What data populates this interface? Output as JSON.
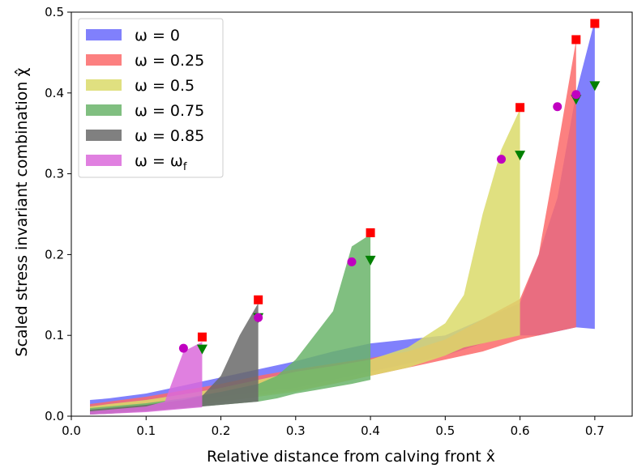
{
  "chart_data": {
    "type": "area",
    "xlabel": "Relative distance from calving front x̂",
    "ylabel": "Scaled stress invariant combination χ̂",
    "xlim": [
      0.0,
      0.75
    ],
    "ylim": [
      0.0,
      0.5
    ],
    "x_ticks": [
      "0.0",
      "0.1",
      "0.2",
      "0.3",
      "0.4",
      "0.5",
      "0.6",
      "0.7"
    ],
    "y_ticks": [
      "0.0",
      "0.1",
      "0.2",
      "0.3",
      "0.4",
      "0.5"
    ],
    "grid": false,
    "legend_position": "top-left",
    "series": [
      {
        "name": "ω = 0",
        "legend_label": "ω = 0",
        "color": "#6a6afc",
        "x": [
          0.025,
          0.05,
          0.1,
          0.15,
          0.2,
          0.25,
          0.3,
          0.35,
          0.4,
          0.45,
          0.5,
          0.55,
          0.6,
          0.625,
          0.65,
          0.675,
          0.7
        ],
        "upper": [
          0.02,
          0.022,
          0.028,
          0.038,
          0.048,
          0.058,
          0.068,
          0.08,
          0.09,
          0.095,
          0.1,
          0.12,
          0.14,
          0.2,
          0.27,
          0.4,
          0.49
        ],
        "lower": [
          0.005,
          0.008,
          0.012,
          0.018,
          0.024,
          0.03,
          0.035,
          0.045,
          0.055,
          0.065,
          0.075,
          0.09,
          0.1,
          0.1,
          0.105,
          0.11,
          0.108
        ]
      },
      {
        "name": "ω = 0.25",
        "legend_label": "ω = 0.25",
        "color": "#fc6a6a",
        "x": [
          0.025,
          0.05,
          0.1,
          0.15,
          0.2,
          0.25,
          0.3,
          0.35,
          0.4,
          0.45,
          0.5,
          0.55,
          0.6,
          0.625,
          0.65,
          0.675
        ],
        "upper": [
          0.015,
          0.018,
          0.024,
          0.032,
          0.04,
          0.05,
          0.058,
          0.065,
          0.072,
          0.08,
          0.095,
          0.12,
          0.145,
          0.2,
          0.33,
          0.465
        ],
        "lower": [
          0.003,
          0.006,
          0.01,
          0.015,
          0.02,
          0.026,
          0.032,
          0.04,
          0.05,
          0.06,
          0.07,
          0.08,
          0.095,
          0.1,
          0.105,
          0.11
        ]
      },
      {
        "name": "ω = 0.5",
        "legend_label": "ω = 0.5",
        "color": "#dada6a",
        "x": [
          0.025,
          0.05,
          0.1,
          0.15,
          0.2,
          0.25,
          0.3,
          0.35,
          0.4,
          0.45,
          0.5,
          0.525,
          0.55,
          0.575,
          0.6
        ],
        "upper": [
          0.012,
          0.015,
          0.02,
          0.027,
          0.035,
          0.045,
          0.055,
          0.062,
          0.07,
          0.085,
          0.115,
          0.15,
          0.25,
          0.33,
          0.38
        ],
        "lower": [
          0.003,
          0.005,
          0.008,
          0.012,
          0.018,
          0.024,
          0.03,
          0.04,
          0.05,
          0.06,
          0.075,
          0.085,
          0.09,
          0.095,
          0.1
        ]
      },
      {
        "name": "ω = 0.75",
        "legend_label": "ω = 0.75",
        "color": "#6ab46a",
        "x": [
          0.025,
          0.05,
          0.1,
          0.15,
          0.2,
          0.25,
          0.275,
          0.3,
          0.325,
          0.35,
          0.375,
          0.4
        ],
        "upper": [
          0.01,
          0.012,
          0.016,
          0.022,
          0.03,
          0.04,
          0.05,
          0.07,
          0.1,
          0.13,
          0.21,
          0.225
        ],
        "lower": [
          0.002,
          0.004,
          0.007,
          0.01,
          0.014,
          0.018,
          0.022,
          0.028,
          0.032,
          0.036,
          0.04,
          0.045
        ]
      },
      {
        "name": "ω = 0.85",
        "legend_label": "ω = 0.85",
        "color": "#6a6a6a",
        "x": [
          0.025,
          0.05,
          0.1,
          0.15,
          0.175,
          0.2,
          0.225,
          0.25
        ],
        "upper": [
          0.008,
          0.01,
          0.014,
          0.02,
          0.025,
          0.05,
          0.1,
          0.14
        ],
        "lower": [
          0.002,
          0.003,
          0.006,
          0.01,
          0.012,
          0.014,
          0.016,
          0.018
        ]
      },
      {
        "name": "ω = ω_f",
        "legend_label": "ω = ω",
        "legend_sub": "f",
        "color": "#da6ada",
        "x": [
          0.025,
          0.05,
          0.1,
          0.125,
          0.15,
          0.175
        ],
        "upper": [
          0.006,
          0.008,
          0.012,
          0.018,
          0.08,
          0.092
        ],
        "lower": [
          0.002,
          0.003,
          0.005,
          0.007,
          0.009,
          0.011
        ]
      }
    ],
    "markers": [
      {
        "shape": "square",
        "color": "#ff0000",
        "points": [
          [
            0.175,
            0.098
          ],
          [
            0.25,
            0.144
          ],
          [
            0.4,
            0.227
          ],
          [
            0.6,
            0.382
          ],
          [
            0.675,
            0.466
          ],
          [
            0.7,
            0.486
          ]
        ]
      },
      {
        "shape": "triangle-down",
        "color": "#008000",
        "points": [
          [
            0.175,
            0.083
          ],
          [
            0.25,
            0.122
          ],
          [
            0.4,
            0.193
          ],
          [
            0.6,
            0.323
          ],
          [
            0.675,
            0.392
          ],
          [
            0.7,
            0.409
          ]
        ]
      },
      {
        "shape": "circle",
        "color": "#c000c0",
        "points": [
          [
            0.15,
            0.084
          ],
          [
            0.25,
            0.122
          ],
          [
            0.375,
            0.191
          ],
          [
            0.575,
            0.318
          ],
          [
            0.65,
            0.383
          ],
          [
            0.675,
            0.398
          ]
        ]
      }
    ]
  }
}
